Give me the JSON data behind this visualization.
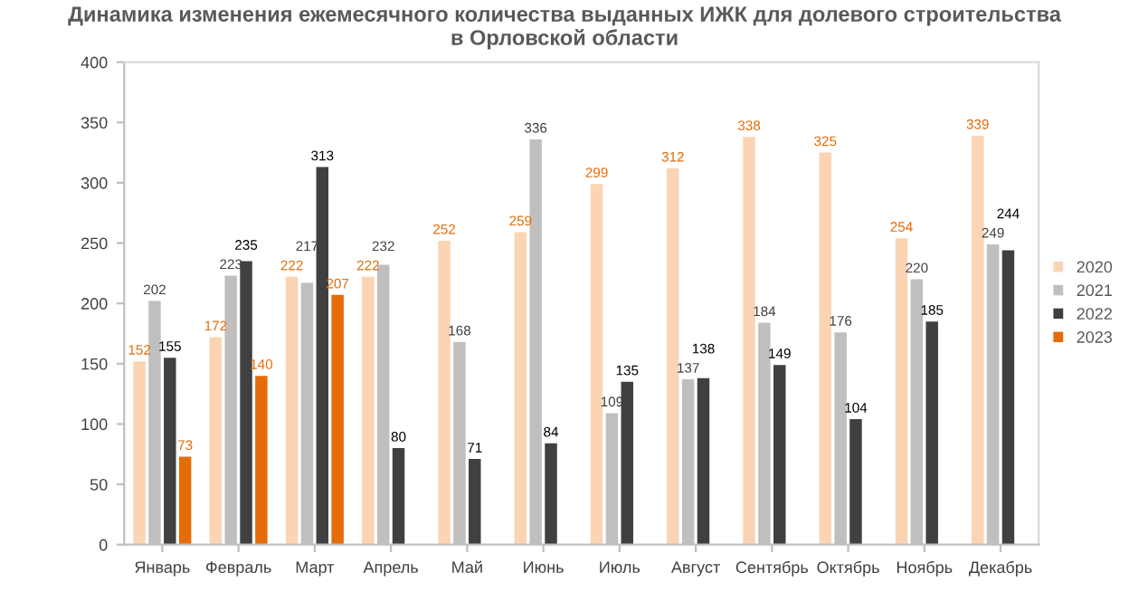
{
  "chart_data": {
    "type": "bar",
    "title": "Динамика изменения ежемесячного количества выданных ИЖК для долевого строительства\nв Орловской области",
    "categories": [
      "Январь",
      "Февраль",
      "Март",
      "Апрель",
      "Май",
      "Июнь",
      "Июль",
      "Август",
      "Сентябрь",
      "Октябрь",
      "Ноябрь",
      "Декабрь"
    ],
    "series": [
      {
        "name": "2020",
        "color": "#fbd4b4",
        "values": [
          152,
          172,
          222,
          222,
          252,
          259,
          299,
          312,
          338,
          325,
          254,
          339
        ]
      },
      {
        "name": "2021",
        "color": "#bfbfbf",
        "values": [
          202,
          223,
          217,
          232,
          168,
          336,
          109,
          137,
          184,
          176,
          220,
          249
        ]
      },
      {
        "name": "2022",
        "color": "#404040",
        "values": [
          155,
          235,
          313,
          80,
          71,
          84,
          135,
          138,
          149,
          104,
          185,
          244
        ]
      },
      {
        "name": "2023",
        "color": "#e46c0a",
        "values": [
          73,
          140,
          207,
          null,
          null,
          null,
          null,
          null,
          null,
          null,
          null,
          null
        ]
      }
    ],
    "ylim": [
      0,
      400
    ],
    "yticks": [
      0,
      50,
      100,
      150,
      200,
      250,
      300,
      350,
      400
    ],
    "data_labels": true,
    "legend": "right",
    "grid": false
  }
}
